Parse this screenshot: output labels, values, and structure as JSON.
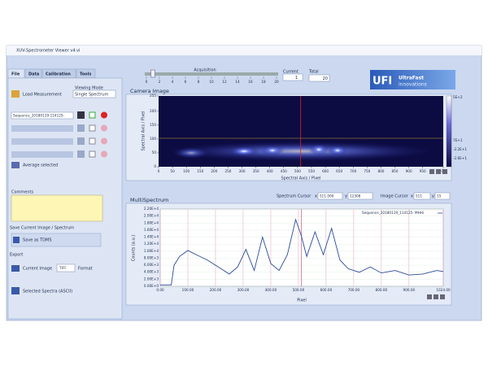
{
  "window": {
    "title": "XUV-Spectrometer Viewer v4.vi",
    "tabs": [
      "File",
      "Data",
      "Calibration",
      "Tools"
    ]
  },
  "acquisition": {
    "label": "Acquisition",
    "ticks": [
      0,
      2,
      4,
      6,
      8,
      10,
      12,
      14,
      16,
      18,
      20
    ],
    "current_label": "Current",
    "current_value": 1,
    "total_label": "Total",
    "total_value": 20
  },
  "logo": {
    "mark": "UFI",
    "line1": "UltraFast",
    "line2": "innovations"
  },
  "left_panel": {
    "load": "Load Measurement",
    "viewing_mode_label": "Viewing Mode",
    "viewing_mode": "Single Spectrum",
    "measurements": [
      "Sequence_20180119-114125-"
    ],
    "average": "Average selected",
    "comments": "Comments",
    "save_heading": "Save Current Image / Spectrum",
    "save_button": "Save as TDMS",
    "export": "Export",
    "current_image": "Current Image",
    "format_value": "TIFF",
    "format_label": "Format",
    "selected_spectra": "Selected Spectra (ASCII)"
  },
  "cursors": {
    "spectrum_label": "Spectrum Cursor",
    "x_label": "x",
    "y_label": "y",
    "spectrum_x": "511.000",
    "spectrum_y": "12308",
    "image_label": "Image Cursor",
    "image_x": 511,
    "image_y": 15
  },
  "chart_data": [
    {
      "type": "heatmap",
      "title": "Camera Image",
      "x_label": "Spectral Axis / Pixel",
      "y_label": "Spectral Axis / Pixel",
      "xlim": [
        0,
        1024
      ],
      "xticks": [
        0,
        50,
        100,
        150,
        200,
        250,
        300,
        350,
        400,
        450,
        500,
        550,
        600,
        650,
        700,
        750,
        800,
        850,
        900,
        950,
        1024
      ],
      "ylim": [
        0,
        255
      ],
      "yticks": [
        0,
        50,
        100,
        150,
        200,
        255
      ],
      "colorbar_labels": [
        "5E+2",
        "7E+1",
        "-2.2E+1",
        "-2.6E+1"
      ]
    },
    {
      "type": "line",
      "title": "MultiSpectrum",
      "x_label": "Pixel",
      "y_label": "Counts (a.u.)",
      "xlim": [
        0,
        1024
      ],
      "xticks": [
        {
          "value": 0,
          "label": "0.00"
        },
        {
          "value": 100,
          "label": "100.00"
        },
        {
          "value": 200,
          "label": "200.00"
        },
        {
          "value": 300,
          "label": "300.00"
        },
        {
          "value": 400,
          "label": "400.00"
        },
        {
          "value": 500,
          "label": "500.00"
        },
        {
          "value": 600,
          "label": "600.00"
        },
        {
          "value": 700,
          "label": "700.00"
        },
        {
          "value": 800,
          "label": "800.00"
        },
        {
          "value": 900,
          "label": "900.00"
        },
        {
          "value": 1024,
          "label": "1024.00"
        }
      ],
      "ylim": [
        0,
        22000
      ],
      "yticks": [
        {
          "value": 0,
          "label": "0.00E+0"
        },
        {
          "value": 2000,
          "label": "2.00E+3"
        },
        {
          "value": 4000,
          "label": "4.00E+3"
        },
        {
          "value": 6000,
          "label": "6.00E+3"
        },
        {
          "value": 8000,
          "label": "8.00E+3"
        },
        {
          "value": 10000,
          "label": "1.00E+4"
        },
        {
          "value": 12000,
          "label": "1.20E+4"
        },
        {
          "value": 14000,
          "label": "1.40E+4"
        },
        {
          "value": 16000,
          "label": "1.60E+4"
        },
        {
          "value": 18000,
          "label": "1.80E+4"
        },
        {
          "value": 20000,
          "label": "2.00E+4"
        },
        {
          "value": 22000,
          "label": "2.20E+4"
        }
      ],
      "grid": true,
      "x": [
        0,
        40,
        50,
        70,
        100,
        130,
        170,
        210,
        250,
        280,
        310,
        340,
        370,
        400,
        430,
        460,
        490,
        510,
        530,
        560,
        590,
        620,
        650,
        680,
        720,
        760,
        800,
        850,
        900,
        950,
        1000,
        1024
      ],
      "series": [
        {
          "name": "Sequence_20180119_114125- MHHi",
          "color": "#2a4a9a",
          "values": [
            400,
            400,
            6000,
            8500,
            10200,
            9000,
            7500,
            5500,
            3500,
            5500,
            10500,
            4500,
            14000,
            6500,
            4500,
            9000,
            19000,
            14500,
            8500,
            15500,
            9000,
            16500,
            7500,
            5000,
            4000,
            5500,
            3800,
            4500,
            3200,
            3500,
            4500,
            4200
          ]
        }
      ]
    }
  ]
}
